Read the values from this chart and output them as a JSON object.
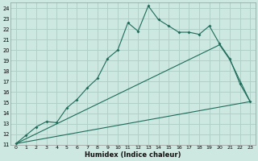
{
  "xlabel": "Humidex (Indice chaleur)",
  "bg_color": "#cce8e0",
  "grid_color": "#b0d0c8",
  "line_color": "#1e6b5a",
  "xlim": [
    -0.5,
    23.5
  ],
  "ylim": [
    11,
    24.5
  ],
  "xticks": [
    0,
    1,
    2,
    3,
    4,
    5,
    6,
    7,
    8,
    9,
    10,
    11,
    12,
    13,
    14,
    15,
    16,
    17,
    18,
    19,
    20,
    21,
    22,
    23
  ],
  "yticks": [
    11,
    12,
    13,
    14,
    15,
    16,
    17,
    18,
    19,
    20,
    21,
    22,
    23,
    24
  ],
  "line1_x": [
    0,
    1,
    2,
    3,
    4,
    5,
    6,
    7,
    8,
    9,
    10,
    11,
    12,
    13,
    14,
    15,
    16,
    17,
    18,
    19,
    20,
    21,
    22,
    23
  ],
  "line1_y": [
    11.1,
    11.9,
    12.7,
    13.2,
    13.1,
    14.5,
    15.3,
    16.4,
    17.3,
    19.2,
    20.0,
    22.6,
    21.8,
    24.2,
    22.9,
    22.3,
    21.7,
    21.7,
    21.5,
    22.3,
    20.6,
    19.2,
    16.8,
    15.1
  ],
  "line2_x": [
    0,
    20,
    21,
    23
  ],
  "line2_y": [
    11.1,
    20.5,
    19.1,
    15.1
  ],
  "line3_x": [
    0,
    23
  ],
  "line3_y": [
    11.1,
    15.1
  ]
}
